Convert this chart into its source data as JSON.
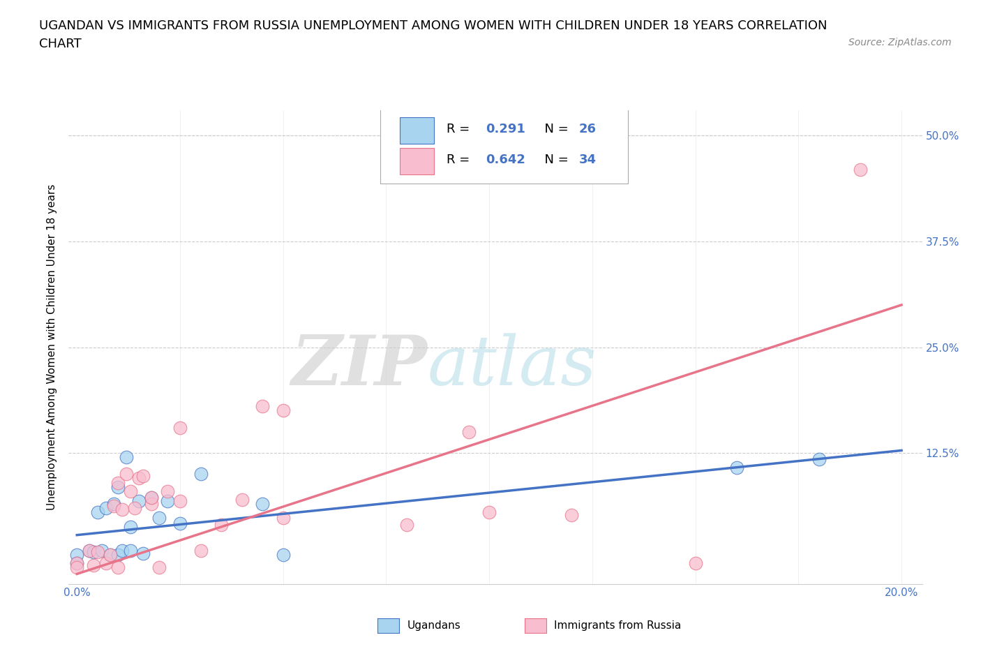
{
  "title_line1": "UGANDAN VS IMMIGRANTS FROM RUSSIA UNEMPLOYMENT AMONG WOMEN WITH CHILDREN UNDER 18 YEARS CORRELATION",
  "title_line2": "CHART",
  "source": "Source: ZipAtlas.com",
  "ylabel_label": "Unemployment Among Women with Children Under 18 years",
  "x_ticks": [
    0.0,
    0.025,
    0.05,
    0.075,
    0.1,
    0.125,
    0.15,
    0.175,
    0.2
  ],
  "y_ticks": [
    0.0,
    0.125,
    0.25,
    0.375,
    0.5
  ],
  "xlim": [
    -0.002,
    0.205
  ],
  "ylim": [
    -0.03,
    0.53
  ],
  "ugandan_R": 0.291,
  "ugandan_N": 26,
  "russia_R": 0.642,
  "russia_N": 34,
  "ugandan_color": "#A8D4F0",
  "russia_color": "#F9BDD0",
  "ugandan_line_color": "#4472C4",
  "russia_line_color": "#E8748A",
  "ugandan_scatter_x": [
    0.0,
    0.0,
    0.003,
    0.004,
    0.005,
    0.006,
    0.007,
    0.008,
    0.009,
    0.01,
    0.01,
    0.011,
    0.012,
    0.013,
    0.013,
    0.015,
    0.016,
    0.018,
    0.02,
    0.022,
    0.025,
    0.03,
    0.045,
    0.05,
    0.16,
    0.18
  ],
  "ugandan_scatter_y": [
    0.005,
    -0.005,
    0.01,
    0.008,
    0.055,
    0.01,
    0.06,
    0.005,
    0.065,
    0.085,
    0.005,
    0.01,
    0.12,
    0.038,
    0.01,
    0.068,
    0.006,
    0.072,
    0.048,
    0.068,
    0.042,
    0.1,
    0.065,
    0.005,
    0.108,
    0.118
  ],
  "russia_scatter_x": [
    0.0,
    0.0,
    0.003,
    0.004,
    0.005,
    0.007,
    0.008,
    0.009,
    0.01,
    0.01,
    0.011,
    0.012,
    0.013,
    0.014,
    0.015,
    0.016,
    0.018,
    0.018,
    0.02,
    0.022,
    0.025,
    0.025,
    0.03,
    0.035,
    0.04,
    0.045,
    0.05,
    0.05,
    0.08,
    0.095,
    0.1,
    0.12,
    0.15,
    0.19
  ],
  "russia_scatter_y": [
    -0.005,
    -0.01,
    0.01,
    -0.008,
    0.008,
    -0.005,
    0.005,
    0.062,
    -0.01,
    0.09,
    0.058,
    0.1,
    0.08,
    0.06,
    0.095,
    0.098,
    0.065,
    0.072,
    -0.01,
    0.08,
    0.068,
    0.155,
    0.01,
    0.04,
    0.07,
    0.18,
    0.175,
    0.048,
    0.04,
    0.15,
    0.055,
    0.052,
    -0.005,
    0.46
  ],
  "ugandan_trend_x": [
    0.0,
    0.2
  ],
  "ugandan_trend_y": [
    0.028,
    0.128
  ],
  "russia_trend_x": [
    0.0,
    0.2
  ],
  "russia_trend_y": [
    -0.018,
    0.3
  ],
  "background_color": "#FFFFFF",
  "grid_color": "#CCCCCC",
  "title_fontsize": 13,
  "axis_label_fontsize": 11,
  "tick_fontsize": 11,
  "legend_fontsize": 13,
  "source_fontsize": 10
}
